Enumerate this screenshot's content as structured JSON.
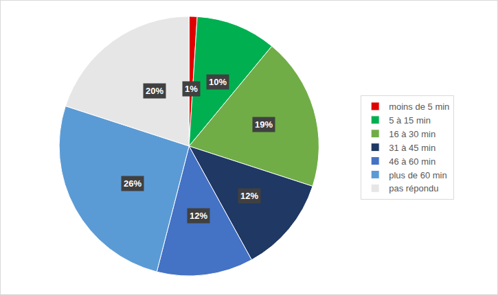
{
  "chart_data": {
    "type": "pie",
    "categories": [
      "moins de 5 min",
      "5 à 15 min",
      "16 à 30 min",
      "31 à 45 min",
      "46 à 60 min",
      "plus de 60 min",
      "pas répondu"
    ],
    "values": [
      1,
      10,
      19,
      12,
      12,
      26,
      20
    ],
    "value_labels": [
      "1%",
      "10%",
      "19%",
      "12%",
      "12%",
      "26%",
      "20%"
    ],
    "colors": [
      "#e00000",
      "#00b050",
      "#70ad47",
      "#1f3864",
      "#4472c4",
      "#5b9bd5",
      "#e7e6e6"
    ],
    "data_labels": true,
    "legend": "right"
  }
}
